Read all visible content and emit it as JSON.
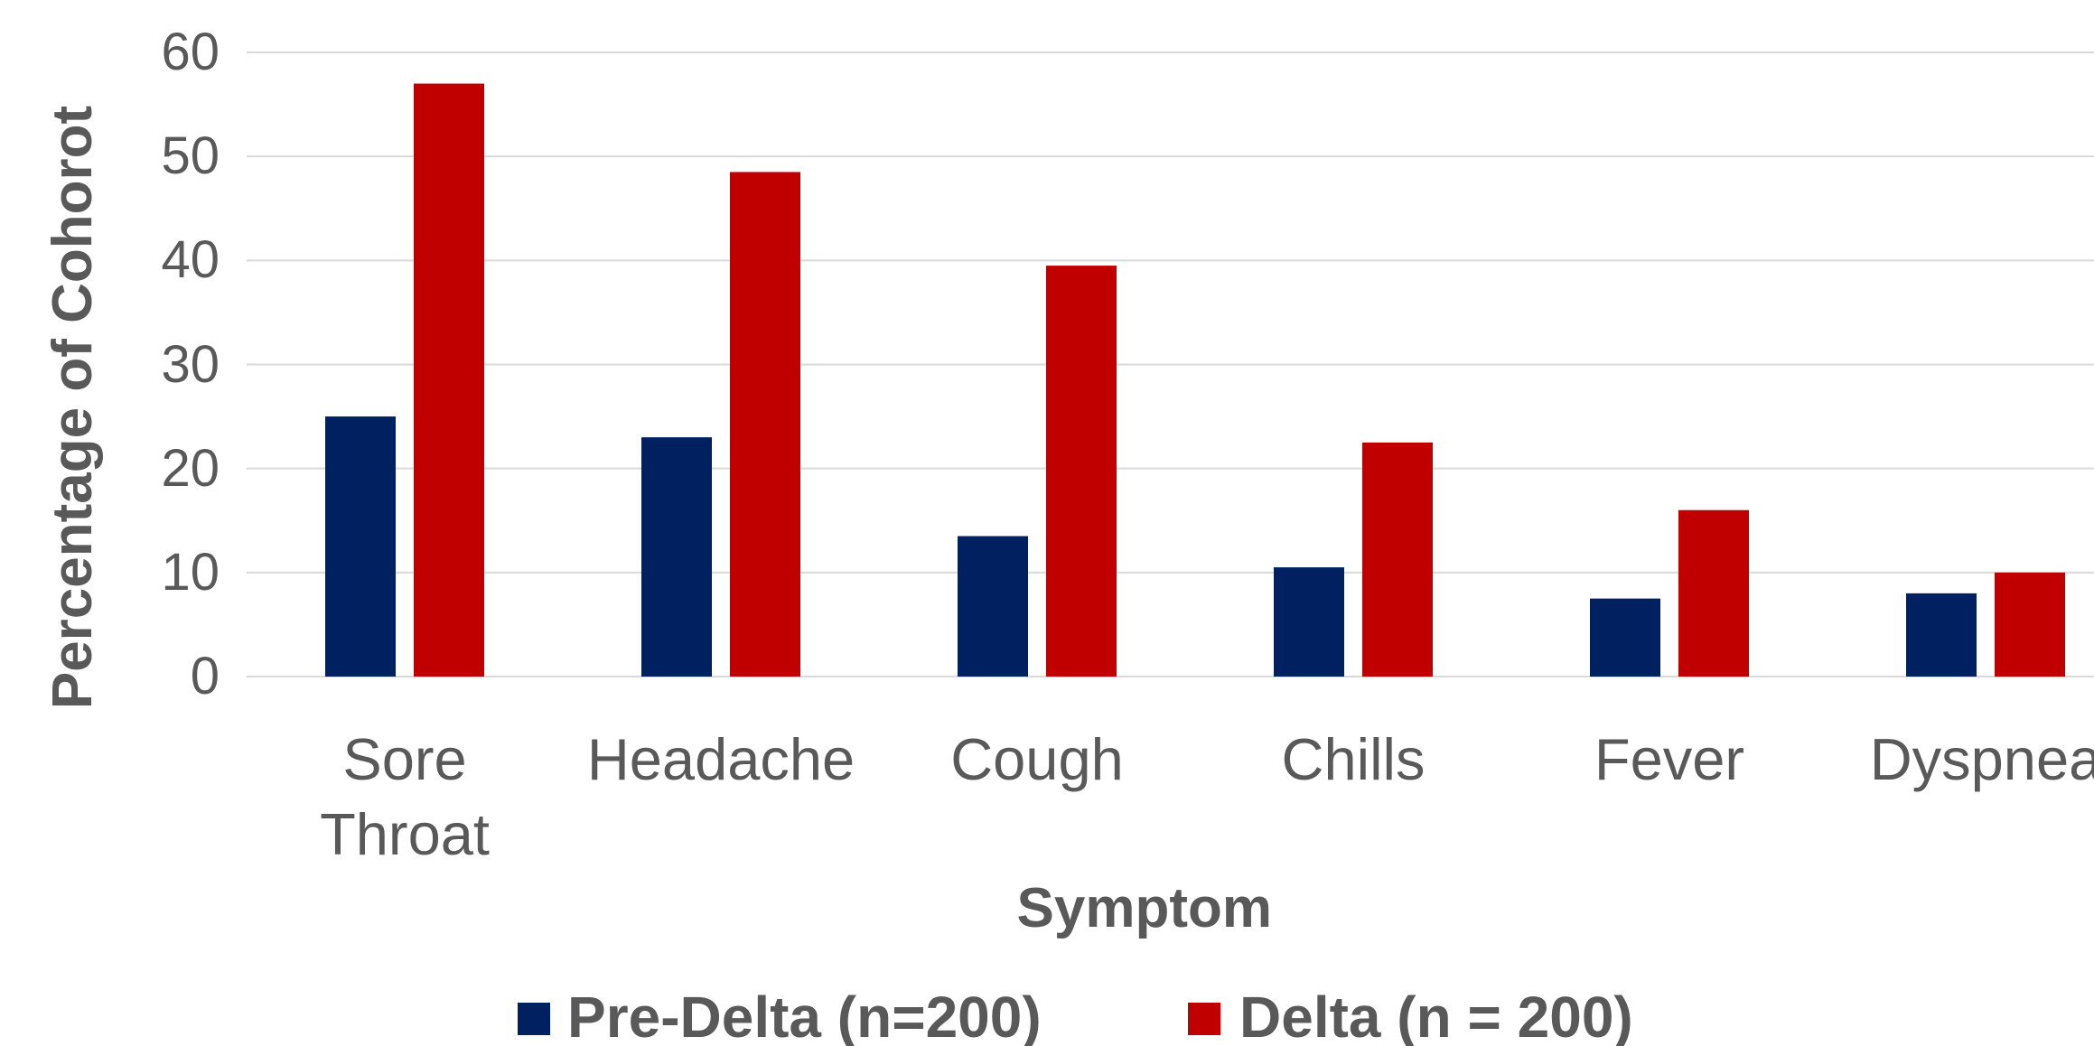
{
  "chart_data": {
    "type": "bar",
    "categories": [
      "Sore Throat",
      "Headache",
      "Cough",
      "Chills",
      "Fever",
      "Dyspnea"
    ],
    "series": [
      {
        "name": "Pre-Delta (n=200)",
        "color": "#002060",
        "values": [
          25,
          23,
          13.5,
          10.5,
          7.5,
          8
        ]
      },
      {
        "name": "Delta (n = 200)",
        "color": "#c00000",
        "values": [
          57,
          48.5,
          39.5,
          22.5,
          16,
          10
        ]
      }
    ],
    "x_label": "Symptom",
    "y_label": "Percentage of Cohorot",
    "ylim": [
      0,
      60
    ],
    "yticks": [
      0,
      10,
      20,
      30,
      40,
      50,
      60
    ],
    "grid": true,
    "legend": "bottom"
  }
}
